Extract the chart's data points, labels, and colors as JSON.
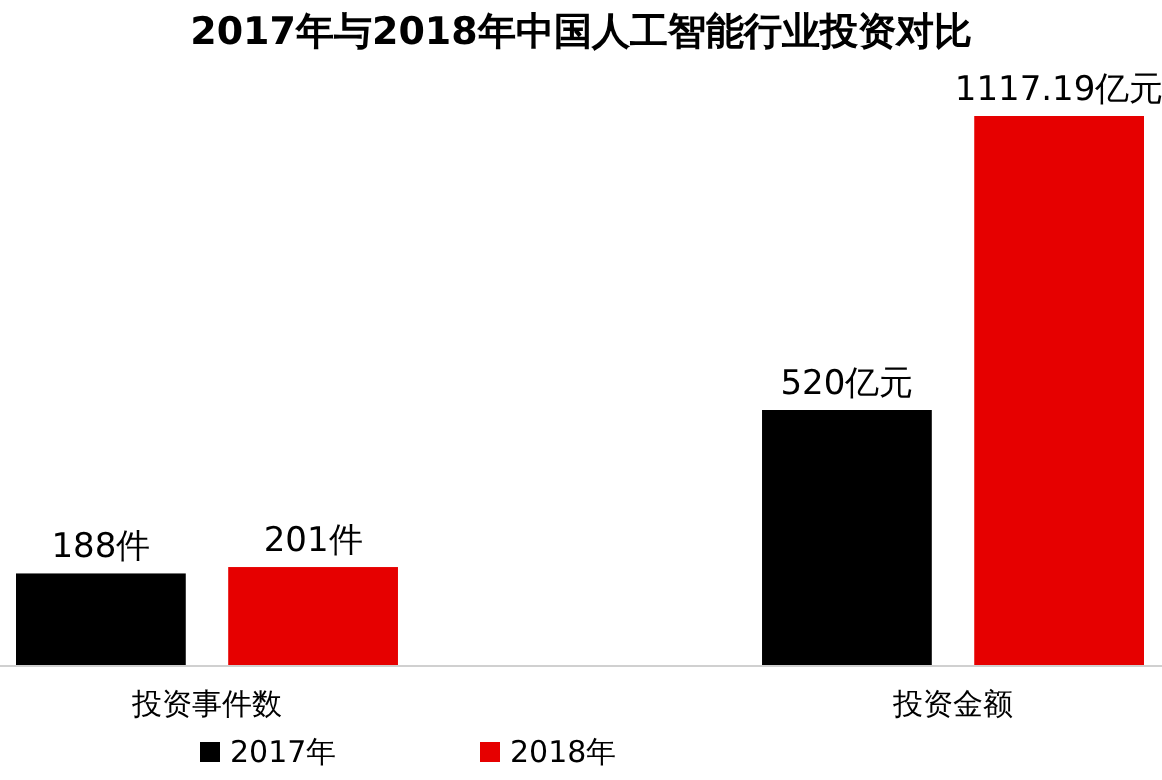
{
  "chart_data": {
    "type": "bar",
    "title": "2017年与2018年中国人工智能行业投资对比",
    "categories": [
      "投资事件数",
      "投资金额"
    ],
    "series": [
      {
        "name": "2017年",
        "color": "#000000",
        "values": [
          188,
          520
        ],
        "value_labels": [
          "188件",
          "520亿元"
        ]
      },
      {
        "name": "2018年",
        "color": "#e60000",
        "values": [
          201,
          1117.19
        ],
        "value_labels": [
          "201件",
          "1117.19亿元"
        ]
      }
    ],
    "legend": "bottom left"
  }
}
